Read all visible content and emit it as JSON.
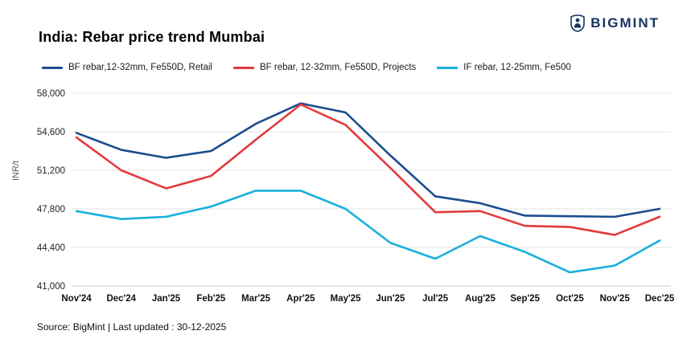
{
  "brand": {
    "name": "BIGMINT"
  },
  "title": "India: Rebar price trend Mumbai",
  "source": "Source: BigMint | Last updated : 30-12-2025",
  "colors": {
    "navy": "#1b4d8e",
    "red": "#e23b3b",
    "cyan": "#17b0dd",
    "grid": "#e3e3e3",
    "axis": "#c9c9c9"
  },
  "chart_data": {
    "type": "line",
    "title": "India: Rebar price trend Mumbai",
    "ylabel": "INR/t",
    "xlabel": "",
    "ylim": [
      41000,
      58000
    ],
    "yticks": [
      41000,
      44400,
      47800,
      51200,
      54600,
      58000
    ],
    "grid": true,
    "legend_position": "top",
    "categories": [
      "Nov'24",
      "Dec'24",
      "Jan'25",
      "Feb'25",
      "Mar'25",
      "Apr'25",
      "May'25",
      "Jun'25",
      "Jul'25",
      "Aug'25",
      "Sep'25",
      "Oct'25",
      "Nov'25",
      "Dec'25"
    ],
    "series": [
      {
        "name": "BF rebar,12-32mm, Fe550D, Retail",
        "color": "#1b4d8e",
        "values": [
          54500,
          53000,
          52300,
          52900,
          55300,
          57100,
          56300,
          52500,
          48900,
          48300,
          47200,
          47150,
          47100,
          47800
        ]
      },
      {
        "name": "BF rebar, 12-32mm, Fe550D, Projects",
        "color": "#e23b3b",
        "values": [
          54100,
          51200,
          49600,
          50700,
          53900,
          57000,
          55200,
          51400,
          47500,
          47600,
          46300,
          46200,
          45500,
          47100
        ]
      },
      {
        "name": "IF rebar, 12-25mm, Fe500",
        "color": "#17b0dd",
        "values": [
          47600,
          46900,
          47100,
          48000,
          49400,
          49400,
          47800,
          44800,
          43400,
          45400,
          44000,
          42200,
          42800,
          45000
        ]
      }
    ]
  }
}
